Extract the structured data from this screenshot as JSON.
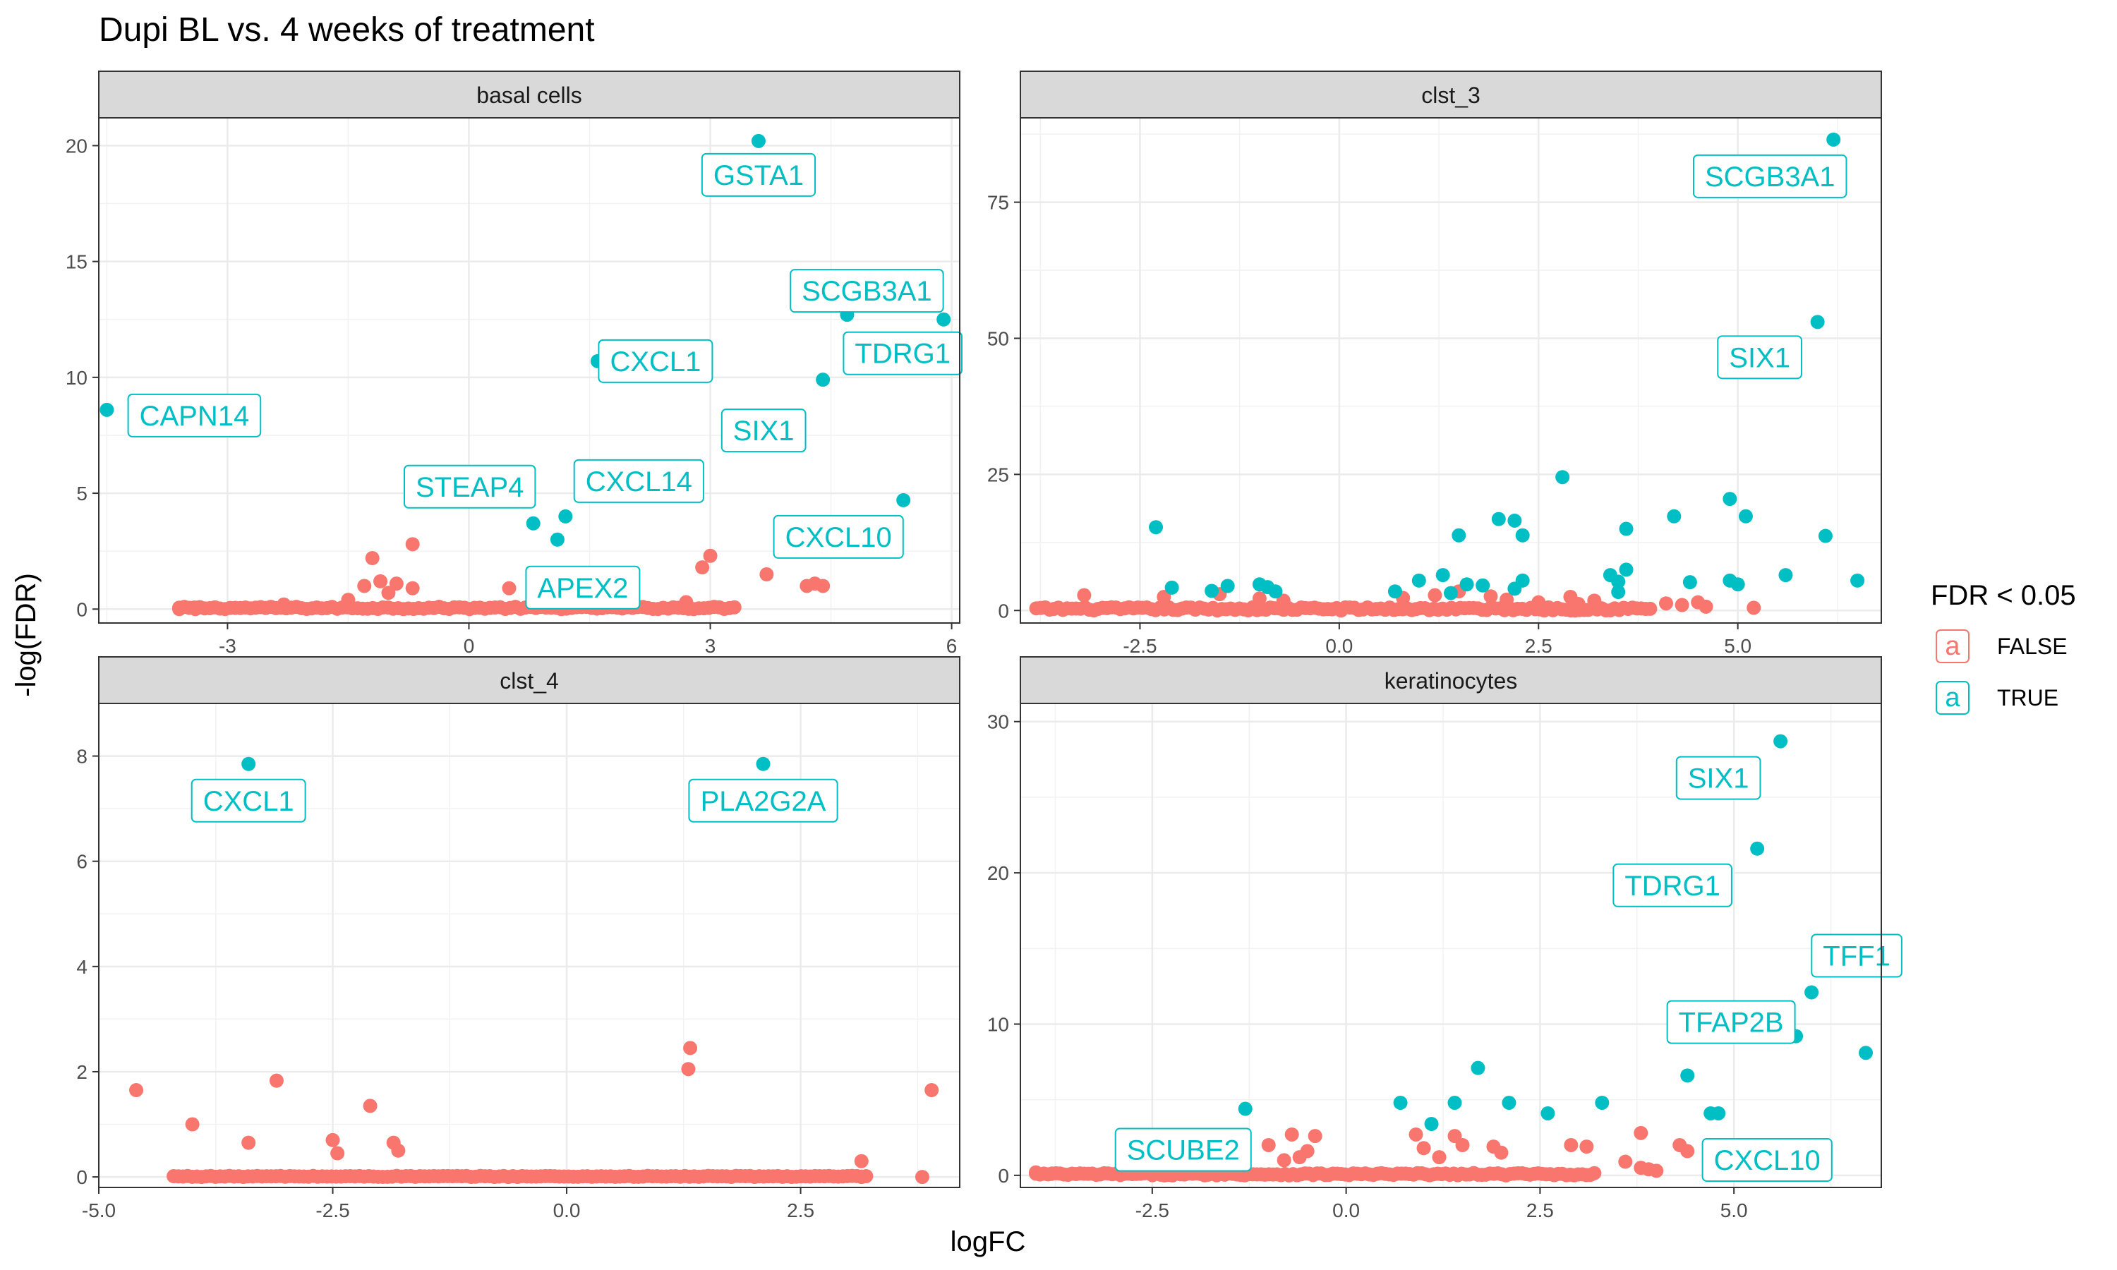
{
  "chart_data": {
    "type": "scatter",
    "title": "Dupi BL vs. 4 weeks of treatment",
    "xlabel": "logFC",
    "ylabel": "-log(FDR)",
    "legend": {
      "title": "FDR < 0.05",
      "placement": "right",
      "glyph": "a",
      "entries": [
        {
          "label": "FALSE",
          "color": "#F8766D"
        },
        {
          "label": "TRUE",
          "color": "#00BFC4"
        }
      ]
    },
    "colors": {
      "FALSE": "#F8766D",
      "TRUE": "#00BFC4"
    },
    "grid": true,
    "panels": [
      {
        "title": "basal cells",
        "xlim": [
          -4.6,
          6.1
        ],
        "ylim": [
          -0.6,
          21.2
        ],
        "xticks": [
          -3,
          0,
          3,
          6
        ],
        "xtick_labels": [
          "-3",
          "0",
          "3",
          "6"
        ],
        "yticks": [
          0,
          5,
          10,
          15,
          20
        ],
        "ytick_labels": [
          "0",
          "5",
          "10",
          "15",
          "20"
        ],
        "bands": [
          {
            "x": [
              -3.6,
              3.3
            ],
            "y": [
              0,
              0.1
            ],
            "n": 110,
            "color": "FALSE"
          }
        ],
        "points": [
          {
            "x": 3.6,
            "y": 20.2,
            "sig": true,
            "label": "GSTA1"
          },
          {
            "x": 1.6,
            "y": 10.7,
            "sig": true,
            "label": "CXCL1"
          },
          {
            "x": 4.7,
            "y": 12.7,
            "sig": true,
            "label": "SCGB3A1"
          },
          {
            "x": 5.9,
            "y": 12.5,
            "sig": true,
            "label": "TDRG1"
          },
          {
            "x": 4.4,
            "y": 9.9,
            "sig": true,
            "label": "SIX1"
          },
          {
            "x": -4.5,
            "y": 8.6,
            "sig": true,
            "label": "CAPN14"
          },
          {
            "x": 0.8,
            "y": 3.7,
            "sig": true,
            "label": "STEAP4"
          },
          {
            "x": 1.2,
            "y": 4.0,
            "sig": true,
            "label": "CXCL14"
          },
          {
            "x": 5.4,
            "y": 4.7,
            "sig": true,
            "label": "CXCL10"
          },
          {
            "x": 1.1,
            "y": 3.0,
            "sig": true,
            "label": "APEX2"
          },
          {
            "x": -1.2,
            "y": 2.2,
            "sig": false
          },
          {
            "x": -0.7,
            "y": 2.8,
            "sig": false
          },
          {
            "x": -1.3,
            "y": 1.0,
            "sig": false
          },
          {
            "x": -1.1,
            "y": 1.2,
            "sig": false
          },
          {
            "x": -0.9,
            "y": 1.1,
            "sig": false
          },
          {
            "x": -0.7,
            "y": 0.9,
            "sig": false
          },
          {
            "x": -1.0,
            "y": 0.7,
            "sig": false
          },
          {
            "x": -1.5,
            "y": 0.4,
            "sig": false
          },
          {
            "x": -2.3,
            "y": 0.2,
            "sig": false
          },
          {
            "x": 0.5,
            "y": 0.9,
            "sig": false
          },
          {
            "x": 0.8,
            "y": 1.3,
            "sig": false
          },
          {
            "x": 0.9,
            "y": 1.5,
            "sig": false
          },
          {
            "x": 0.8,
            "y": 1.0,
            "sig": false
          },
          {
            "x": 3.0,
            "y": 2.3,
            "sig": false
          },
          {
            "x": 2.9,
            "y": 1.8,
            "sig": false
          },
          {
            "x": 3.7,
            "y": 1.5,
            "sig": false
          },
          {
            "x": 4.2,
            "y": 1.0,
            "sig": false
          },
          {
            "x": 4.4,
            "y": 1.0,
            "sig": false
          },
          {
            "x": 4.3,
            "y": 1.1,
            "sig": false
          },
          {
            "x": -3.6,
            "y": 0.0,
            "sig": false
          },
          {
            "x": -3.4,
            "y": 0.0,
            "sig": false
          },
          {
            "x": 2.7,
            "y": 0.3,
            "sig": false
          }
        ]
      },
      {
        "title": "clst_3",
        "xlim": [
          -4.0,
          6.8
        ],
        "ylim": [
          -2.3,
          90.5
        ],
        "xticks": [
          -2.5,
          0,
          2.5,
          5
        ],
        "xtick_labels": [
          "-2.5",
          "0.0",
          "2.5",
          "5.0"
        ],
        "yticks": [
          0,
          25,
          50,
          75
        ],
        "ytick_labels": [
          "0",
          "25",
          "50",
          "75"
        ],
        "bands": [
          {
            "x": [
              -3.8,
              3.9
            ],
            "y": [
              0,
              0.6
            ],
            "n": 140,
            "color": "FALSE"
          }
        ],
        "points": [
          {
            "x": 6.2,
            "y": 86.5,
            "sig": true,
            "label": "SCGB3A1"
          },
          {
            "x": 6.0,
            "y": 53.0,
            "sig": true,
            "label": "SIX1"
          },
          {
            "x": 2.8,
            "y": 24.5,
            "sig": true
          },
          {
            "x": 2.0,
            "y": 16.8,
            "sig": true
          },
          {
            "x": 2.2,
            "y": 16.5,
            "sig": true
          },
          {
            "x": 2.3,
            "y": 13.8,
            "sig": true
          },
          {
            "x": 1.5,
            "y": 13.8,
            "sig": true
          },
          {
            "x": -2.3,
            "y": 15.3,
            "sig": true
          },
          {
            "x": 3.6,
            "y": 15.0,
            "sig": true
          },
          {
            "x": 4.2,
            "y": 17.3,
            "sig": true
          },
          {
            "x": 4.9,
            "y": 20.5,
            "sig": true
          },
          {
            "x": 5.1,
            "y": 17.3,
            "sig": true
          },
          {
            "x": 6.1,
            "y": 13.7,
            "sig": true
          },
          {
            "x": 5.6,
            "y": 6.5,
            "sig": true
          },
          {
            "x": 6.5,
            "y": 5.5,
            "sig": true
          },
          {
            "x": 4.4,
            "y": 5.2,
            "sig": true
          },
          {
            "x": 4.9,
            "y": 5.5,
            "sig": true
          },
          {
            "x": 5.0,
            "y": 4.8,
            "sig": true
          },
          {
            "x": 3.4,
            "y": 6.5,
            "sig": true
          },
          {
            "x": 3.5,
            "y": 5.3,
            "sig": true
          },
          {
            "x": 3.5,
            "y": 3.4,
            "sig": true
          },
          {
            "x": 3.6,
            "y": 7.5,
            "sig": true
          },
          {
            "x": 1.3,
            "y": 6.5,
            "sig": true
          },
          {
            "x": 1.0,
            "y": 5.5,
            "sig": true
          },
          {
            "x": 1.6,
            "y": 4.8,
            "sig": true
          },
          {
            "x": 1.8,
            "y": 4.6,
            "sig": true
          },
          {
            "x": 2.2,
            "y": 4.0,
            "sig": true
          },
          {
            "x": 2.3,
            "y": 5.5,
            "sig": true
          },
          {
            "x": 0.7,
            "y": 3.5,
            "sig": true
          },
          {
            "x": 1.4,
            "y": 3.2,
            "sig": true
          },
          {
            "x": -2.1,
            "y": 4.2,
            "sig": true
          },
          {
            "x": -1.4,
            "y": 4.5,
            "sig": true
          },
          {
            "x": -1.6,
            "y": 3.6,
            "sig": true
          },
          {
            "x": -1.0,
            "y": 4.8,
            "sig": true
          },
          {
            "x": -0.9,
            "y": 4.3,
            "sig": true
          },
          {
            "x": -0.8,
            "y": 3.5,
            "sig": true
          },
          {
            "x": -3.2,
            "y": 2.8,
            "sig": false
          },
          {
            "x": -2.2,
            "y": 2.5,
            "sig": false
          },
          {
            "x": -1.5,
            "y": 3.0,
            "sig": false
          },
          {
            "x": -1.0,
            "y": 2.2,
            "sig": false
          },
          {
            "x": -0.7,
            "y": 1.8,
            "sig": false
          },
          {
            "x": 0.8,
            "y": 2.3,
            "sig": false
          },
          {
            "x": 1.2,
            "y": 2.8,
            "sig": false
          },
          {
            "x": 1.5,
            "y": 3.5,
            "sig": false
          },
          {
            "x": 1.9,
            "y": 2.6,
            "sig": false
          },
          {
            "x": 2.1,
            "y": 2.0,
            "sig": false
          },
          {
            "x": 2.5,
            "y": 1.5,
            "sig": false
          },
          {
            "x": 2.9,
            "y": 2.5,
            "sig": false
          },
          {
            "x": 3.0,
            "y": 1.2,
            "sig": false
          },
          {
            "x": 3.2,
            "y": 1.8,
            "sig": false
          },
          {
            "x": 4.1,
            "y": 1.3,
            "sig": false
          },
          {
            "x": 4.3,
            "y": 1.0,
            "sig": false
          },
          {
            "x": 4.5,
            "y": 1.5,
            "sig": false
          },
          {
            "x": 5.2,
            "y": 0.5,
            "sig": false
          },
          {
            "x": 4.6,
            "y": 0.7,
            "sig": false
          }
        ]
      },
      {
        "title": "clst_4",
        "xlim": [
          -5.0,
          4.2
        ],
        "ylim": [
          -0.2,
          9.0
        ],
        "xticks": [
          -5,
          -2.5,
          0,
          2.5
        ],
        "xtick_labels": [
          "-5.0",
          "-2.5",
          "0.0",
          "2.5"
        ],
        "yticks": [
          0,
          2,
          4,
          6,
          8
        ],
        "ytick_labels": [
          "0",
          "2",
          "4",
          "6",
          "8"
        ],
        "bands": [
          {
            "x": [
              -4.2,
              3.2
            ],
            "y": [
              0,
              0.02
            ],
            "n": 150,
            "color": "FALSE"
          }
        ],
        "points": [
          {
            "x": -3.4,
            "y": 7.85,
            "sig": true,
            "label": "CXCL1"
          },
          {
            "x": 2.1,
            "y": 7.85,
            "sig": true,
            "label": "PLA2G2A"
          },
          {
            "x": -4.6,
            "y": 1.65,
            "sig": false
          },
          {
            "x": -4.0,
            "y": 1.0,
            "sig": false
          },
          {
            "x": -3.1,
            "y": 1.83,
            "sig": false
          },
          {
            "x": -3.4,
            "y": 0.65,
            "sig": false
          },
          {
            "x": -2.5,
            "y": 0.7,
            "sig": false
          },
          {
            "x": -2.45,
            "y": 0.45,
            "sig": false
          },
          {
            "x": -2.1,
            "y": 1.35,
            "sig": false
          },
          {
            "x": -1.85,
            "y": 0.65,
            "sig": false
          },
          {
            "x": -1.8,
            "y": 0.5,
            "sig": false
          },
          {
            "x": 1.32,
            "y": 2.45,
            "sig": false
          },
          {
            "x": 1.3,
            "y": 2.05,
            "sig": false
          },
          {
            "x": 3.9,
            "y": 1.65,
            "sig": false
          },
          {
            "x": 3.15,
            "y": 0.3,
            "sig": false
          },
          {
            "x": 3.8,
            "y": 0.0,
            "sig": false
          },
          {
            "x": 3.15,
            "y": 0.0,
            "sig": false
          }
        ]
      },
      {
        "title": "keratinocytes",
        "xlim": [
          -4.2,
          6.9
        ],
        "ylim": [
          -0.8,
          31.2
        ],
        "xticks": [
          -2.5,
          0,
          2.5,
          5
        ],
        "xtick_labels": [
          "-2.5",
          "0.0",
          "2.5",
          "5.0"
        ],
        "yticks": [
          0,
          10,
          20,
          30
        ],
        "ytick_labels": [
          "0",
          "10",
          "20",
          "30"
        ],
        "bands": [
          {
            "x": [
              -4.0,
              3.2
            ],
            "y": [
              0,
              0.15
            ],
            "n": 140,
            "color": "FALSE"
          }
        ],
        "points": [
          {
            "x": 5.6,
            "y": 28.7,
            "sig": true,
            "label": "SIX1"
          },
          {
            "x": 5.3,
            "y": 21.6,
            "sig": true,
            "label": "TDRG1"
          },
          {
            "x": 6.0,
            "y": 12.1,
            "sig": true,
            "label": "TFF1"
          },
          {
            "x": 5.8,
            "y": 9.2,
            "sig": true,
            "label": "TFAP2B"
          },
          {
            "x": 4.7,
            "y": 4.1,
            "sig": true,
            "label": "CXCL10"
          },
          {
            "x": -1.3,
            "y": 4.4,
            "sig": true,
            "label": "SCUBE2"
          },
          {
            "x": 6.7,
            "y": 8.1,
            "sig": true
          },
          {
            "x": 4.4,
            "y": 6.6,
            "sig": true
          },
          {
            "x": 4.8,
            "y": 4.1,
            "sig": true
          },
          {
            "x": 1.7,
            "y": 7.1,
            "sig": true
          },
          {
            "x": 0.7,
            "y": 4.8,
            "sig": true
          },
          {
            "x": 1.4,
            "y": 4.8,
            "sig": true
          },
          {
            "x": 2.1,
            "y": 4.8,
            "sig": true
          },
          {
            "x": 2.6,
            "y": 4.1,
            "sig": true
          },
          {
            "x": 3.3,
            "y": 4.8,
            "sig": true
          },
          {
            "x": 1.1,
            "y": 3.4,
            "sig": true
          },
          {
            "x": -0.7,
            "y": 2.7,
            "sig": false
          },
          {
            "x": -0.4,
            "y": 2.6,
            "sig": false
          },
          {
            "x": -1.0,
            "y": 2.0,
            "sig": false
          },
          {
            "x": -0.5,
            "y": 1.6,
            "sig": false
          },
          {
            "x": -0.6,
            "y": 1.2,
            "sig": false
          },
          {
            "x": -0.8,
            "y": 1.0,
            "sig": false
          },
          {
            "x": 0.9,
            "y": 2.7,
            "sig": false
          },
          {
            "x": 1.4,
            "y": 2.6,
            "sig": false
          },
          {
            "x": 1.5,
            "y": 2.0,
            "sig": false
          },
          {
            "x": 1.0,
            "y": 1.8,
            "sig": false
          },
          {
            "x": 1.9,
            "y": 1.9,
            "sig": false
          },
          {
            "x": 2.0,
            "y": 1.5,
            "sig": false
          },
          {
            "x": 1.2,
            "y": 1.2,
            "sig": false
          },
          {
            "x": 2.9,
            "y": 2.0,
            "sig": false
          },
          {
            "x": 3.1,
            "y": 1.9,
            "sig": false
          },
          {
            "x": 3.8,
            "y": 2.8,
            "sig": false
          },
          {
            "x": 4.3,
            "y": 2.0,
            "sig": false
          },
          {
            "x": 4.4,
            "y": 1.6,
            "sig": false
          },
          {
            "x": 3.6,
            "y": 0.9,
            "sig": false
          },
          {
            "x": 3.9,
            "y": 0.4,
            "sig": false
          },
          {
            "x": 4.0,
            "y": 0.3,
            "sig": false
          },
          {
            "x": 3.8,
            "y": 0.5,
            "sig": false
          },
          {
            "x": -4.0,
            "y": 0.2,
            "sig": false
          },
          {
            "x": -3.8,
            "y": 0.1,
            "sig": false
          }
        ]
      }
    ]
  }
}
